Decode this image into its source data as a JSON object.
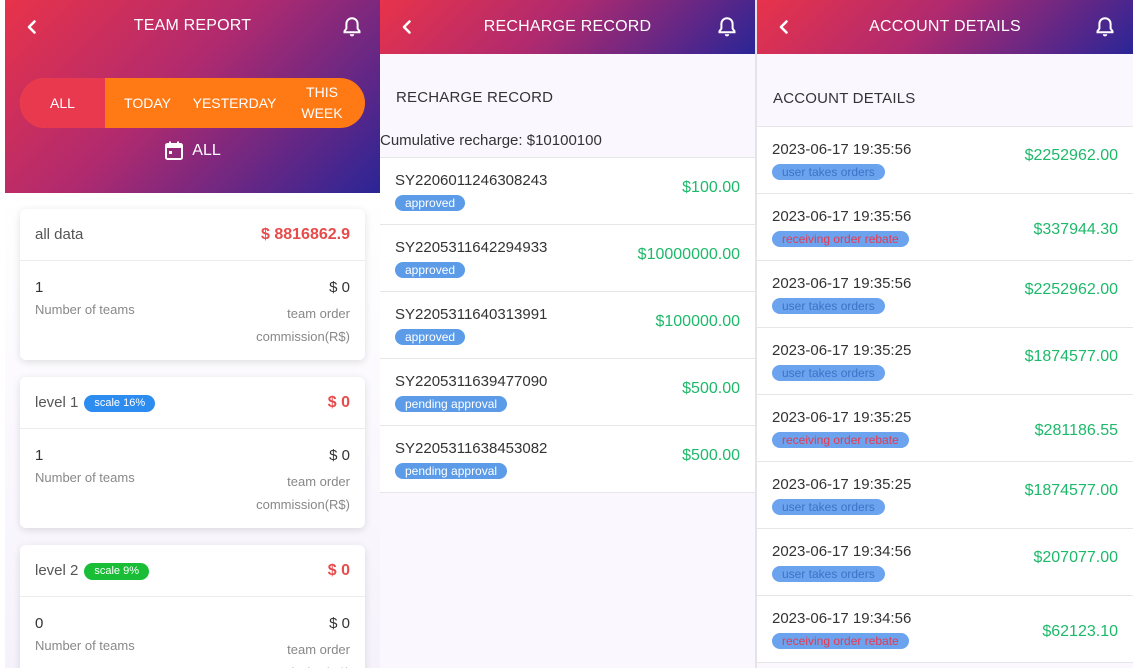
{
  "team_report": {
    "title": "TEAM REPORT",
    "tabs": [
      "ALL",
      "TODAY",
      "YESTERDAY",
      "THIS WEEK"
    ],
    "active_tab": "ALL",
    "date_filter": "ALL",
    "cards": [
      {
        "name": "all data",
        "amount": "$ 8816862.9",
        "count": "1",
        "count_label": "Number of teams",
        "commission": "$ 0",
        "commission_label": "team order commission(R$)"
      },
      {
        "name": "level 1",
        "badge": "scale 16%",
        "badge_color": "#2d8cf0",
        "amount": "$ 0",
        "count": "1",
        "count_label": "Number of teams",
        "commission": "$ 0",
        "commission_label": "team order commission(R$)"
      },
      {
        "name": "level 2",
        "badge": "scale 9%",
        "badge_color": "#19be36",
        "amount": "$ 0",
        "count": "0",
        "count_label": "Number of teams",
        "commission": "$ 0",
        "commission_label": "team order commission(R$)"
      }
    ]
  },
  "recharge_record": {
    "title": "RECHARGE RECORD",
    "section_title": "RECHARGE RECORD",
    "cumulative": "Cumulative recharge: $10100100",
    "records": [
      {
        "id": "SY2206011246308243",
        "status": "approved",
        "amount": "$100.00"
      },
      {
        "id": "SY2205311642294933",
        "status": "approved",
        "amount": "$10000000.00"
      },
      {
        "id": "SY2205311640313991",
        "status": "approved",
        "amount": "$100000.00"
      },
      {
        "id": "SY2205311639477090",
        "status": "pending approval",
        "amount": "$500.00"
      },
      {
        "id": "SY2205311638453082",
        "status": "pending approval",
        "amount": "$500.00"
      }
    ]
  },
  "account_details": {
    "title": "ACCOUNT DETAILS",
    "section_title": "ACCOUNT DETAILS",
    "entries": [
      {
        "time": "2023-06-17 19:35:56",
        "type": "user takes orders",
        "amount": "$2252962.00"
      },
      {
        "time": "2023-06-17 19:35:56",
        "type": "receiving order rebate",
        "amount": "$337944.30"
      },
      {
        "time": "2023-06-17 19:35:56",
        "type": "user takes orders",
        "amount": "$2252962.00"
      },
      {
        "time": "2023-06-17 19:35:25",
        "type": "user takes orders",
        "amount": "$1874577.00"
      },
      {
        "time": "2023-06-17 19:35:25",
        "type": "receiving order rebate",
        "amount": "$281186.55"
      },
      {
        "time": "2023-06-17 19:35:25",
        "type": "user takes orders",
        "amount": "$1874577.00"
      },
      {
        "time": "2023-06-17 19:34:56",
        "type": "user takes orders",
        "amount": "$207077.00"
      },
      {
        "time": "2023-06-17 19:34:56",
        "type": "receiving order rebate",
        "amount": "$62123.10"
      }
    ]
  },
  "icons": {
    "back": "chevron-left-icon",
    "bell": "bell-icon",
    "calendar": "calendar-icon"
  },
  "colors": {
    "accent_red": "#e84b4b",
    "amount_green": "#1db96a",
    "segment_orange": "#ff7a14",
    "status_blue": "#5b9be8"
  }
}
